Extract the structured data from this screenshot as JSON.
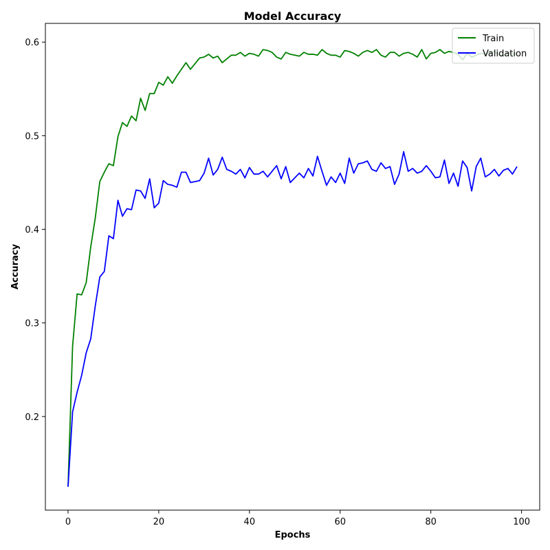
{
  "chart_data": {
    "type": "line",
    "title": "Model Accuracy",
    "xlabel": "Epochs",
    "ylabel": "Accuracy",
    "xlim": [
      -5,
      104
    ],
    "ylim": [
      0.1,
      0.62
    ],
    "xticks": [
      0,
      20,
      40,
      60,
      80,
      100
    ],
    "yticks": [
      0.2,
      0.3,
      0.4,
      0.5,
      0.6
    ],
    "xtick_labels": [
      "0",
      "20",
      "40",
      "60",
      "80",
      "100"
    ],
    "ytick_labels": [
      "0.2",
      "0.3",
      "0.4",
      "0.5",
      "0.6"
    ],
    "grid": false,
    "legend_position": "top-right",
    "x": [
      0,
      1,
      2,
      3,
      4,
      5,
      6,
      7,
      8,
      9,
      10,
      11,
      12,
      13,
      14,
      15,
      16,
      17,
      18,
      19,
      20,
      21,
      22,
      23,
      24,
      25,
      26,
      27,
      28,
      29,
      30,
      31,
      32,
      33,
      34,
      35,
      36,
      37,
      38,
      39,
      40,
      41,
      42,
      43,
      44,
      45,
      46,
      47,
      48,
      49,
      50,
      51,
      52,
      53,
      54,
      55,
      56,
      57,
      58,
      59,
      60,
      61,
      62,
      63,
      64,
      65,
      66,
      67,
      68,
      69,
      70,
      71,
      72,
      73,
      74,
      75,
      76,
      77,
      78,
      79,
      80,
      81,
      82,
      83,
      84,
      85,
      86,
      87,
      88,
      89,
      90,
      91,
      92,
      93,
      94,
      95,
      96,
      97,
      98,
      99
    ],
    "series": [
      {
        "name": "Train",
        "color": "#008000",
        "values": [
          0.125,
          0.275,
          0.331,
          0.33,
          0.343,
          0.381,
          0.412,
          0.451,
          0.461,
          0.47,
          0.468,
          0.499,
          0.514,
          0.51,
          0.521,
          0.516,
          0.54,
          0.527,
          0.545,
          0.545,
          0.557,
          0.554,
          0.563,
          0.556,
          0.564,
          0.571,
          0.578,
          0.571,
          0.577,
          0.583,
          0.584,
          0.587,
          0.583,
          0.585,
          0.578,
          0.582,
          0.586,
          0.586,
          0.589,
          0.585,
          0.588,
          0.587,
          0.585,
          0.592,
          0.591,
          0.589,
          0.584,
          0.582,
          0.589,
          0.587,
          0.586,
          0.585,
          0.589,
          0.587,
          0.587,
          0.586,
          0.592,
          0.588,
          0.586,
          0.586,
          0.584,
          0.591,
          0.59,
          0.588,
          0.585,
          0.589,
          0.591,
          0.589,
          0.592,
          0.586,
          0.584,
          0.589,
          0.589,
          0.585,
          0.588,
          0.589,
          0.587,
          0.584,
          0.592,
          0.582,
          0.588,
          0.589,
          0.592,
          0.588,
          0.59,
          0.589,
          0.587,
          0.581,
          0.588,
          0.584,
          0.586,
          0.588,
          0.587,
          0.589,
          0.59,
          0.587,
          0.585,
          0.589,
          0.587,
          0.588
        ]
      },
      {
        "name": "Validation",
        "color": "#0000ff",
        "values": [
          0.125,
          0.205,
          0.226,
          0.244,
          0.268,
          0.283,
          0.318,
          0.349,
          0.355,
          0.393,
          0.39,
          0.431,
          0.414,
          0.422,
          0.421,
          0.442,
          0.441,
          0.433,
          0.454,
          0.423,
          0.428,
          0.452,
          0.448,
          0.447,
          0.445,
          0.461,
          0.461,
          0.45,
          0.451,
          0.452,
          0.46,
          0.476,
          0.458,
          0.464,
          0.477,
          0.464,
          0.462,
          0.459,
          0.464,
          0.455,
          0.466,
          0.459,
          0.459,
          0.462,
          0.456,
          0.462,
          0.468,
          0.454,
          0.467,
          0.45,
          0.455,
          0.46,
          0.455,
          0.465,
          0.457,
          0.478,
          0.462,
          0.447,
          0.456,
          0.45,
          0.46,
          0.449,
          0.476,
          0.46,
          0.47,
          0.471,
          0.473,
          0.464,
          0.462,
          0.471,
          0.465,
          0.467,
          0.448,
          0.459,
          0.483,
          0.462,
          0.465,
          0.46,
          0.462,
          0.468,
          0.462,
          0.455,
          0.456,
          0.474,
          0.449,
          0.46,
          0.446,
          0.473,
          0.466,
          0.441,
          0.467,
          0.476,
          0.456,
          0.459,
          0.464,
          0.457,
          0.463,
          0.465,
          0.459,
          0.467
        ]
      }
    ]
  }
}
